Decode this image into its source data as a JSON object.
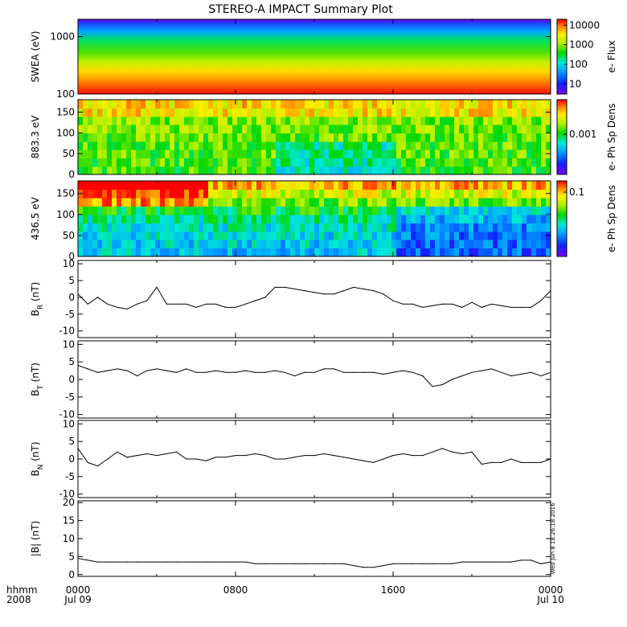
{
  "chart_data": {
    "title": "STEREO-A IMPACT Summary Plot",
    "type": "multi-panel",
    "x_axis": {
      "ticks": [
        "0000",
        "0800",
        "1600",
        "0000"
      ],
      "dates": [
        "Jul 09",
        "",
        "",
        "Jul 10"
      ],
      "row_labels": [
        "hhmm",
        "2008"
      ],
      "range_hours": [
        0,
        24
      ]
    },
    "timestamp": "Wed Jun  8 18:26:18 2016",
    "panels": [
      {
        "id": "swea",
        "type": "heatmap",
        "ylabel": "SWEA (eV)",
        "yscale": "log",
        "ylim": [
          100,
          2000
        ],
        "yticks": [
          {
            "v": 1000,
            "t": "1000"
          },
          {
            "v": 100,
            "t": "100"
          }
        ],
        "colorbar_label": "e- Flux",
        "colorbar_scale": "log",
        "colorbar_range": [
          3,
          20000
        ],
        "colorbar_ticks": [
          {
            "v": 10000,
            "t": "10000"
          },
          {
            "v": 1000,
            "t": "1000"
          },
          {
            "v": 100,
            "t": "100"
          },
          {
            "v": 10,
            "t": "10"
          }
        ]
      },
      {
        "id": "pad883",
        "type": "heatmap",
        "ylabel": "883.3 eV",
        "ylim": [
          0,
          180
        ],
        "yticks": [
          {
            "v": 0,
            "t": "0"
          },
          {
            "v": 50,
            "t": "50"
          },
          {
            "v": 100,
            "t": "100"
          },
          {
            "v": 150,
            "t": "150"
          }
        ],
        "colorbar_label": "e- Ph Sp Dens",
        "colorbar_scale": "log",
        "colorbar_range": [
          0.0002,
          0.004
        ],
        "colorbar_ticks": [
          {
            "v": 0.001,
            "t": "0.001"
          }
        ]
      },
      {
        "id": "pad436",
        "type": "heatmap",
        "ylabel": "436.5 eV",
        "ylim": [
          0,
          180
        ],
        "yticks": [
          {
            "v": 0,
            "t": "0"
          },
          {
            "v": 50,
            "t": "50"
          },
          {
            "v": 100,
            "t": "100"
          },
          {
            "v": 150,
            "t": "150"
          }
        ],
        "colorbar_label": "e- Ph Sp Dens",
        "colorbar_scale": "log",
        "colorbar_range": [
          0.01,
          0.15
        ],
        "colorbar_ticks": [
          {
            "v": 0.1,
            "t": "0.1"
          }
        ]
      },
      {
        "id": "br",
        "type": "line",
        "ylabel": "B",
        "ylabel_sub": "R",
        "yunit": " (nT)",
        "ylim": [
          -12,
          11
        ],
        "yticks": [
          {
            "v": 10,
            "t": "10"
          },
          {
            "v": 5,
            "t": "5"
          },
          {
            "v": 0,
            "t": "0"
          },
          {
            "v": -5,
            "t": "-5"
          },
          {
            "v": -10,
            "t": "-10"
          }
        ],
        "x": [
          0,
          0.5,
          1,
          1.5,
          2,
          2.5,
          3,
          3.5,
          4,
          4.5,
          5,
          5.5,
          6,
          6.5,
          7,
          7.5,
          8,
          8.5,
          9,
          9.5,
          10,
          10.5,
          11,
          11.5,
          12,
          12.5,
          13,
          13.5,
          14,
          14.5,
          15,
          15.5,
          16,
          16.5,
          17,
          17.5,
          18,
          18.5,
          19,
          19.5,
          20,
          20.5,
          21,
          21.5,
          22,
          22.5,
          23,
          23.5,
          24
        ],
        "y": [
          1,
          -2,
          0,
          -2,
          -3,
          -3.5,
          -2,
          -1,
          3,
          -2,
          -2,
          -2,
          -3,
          -2,
          -2,
          -3,
          -3,
          -2,
          -1,
          0,
          3,
          3,
          2.5,
          2,
          1.5,
          1,
          1,
          2,
          3,
          2.5,
          2,
          1,
          -1,
          -2,
          -2,
          -3,
          -2.5,
          -2,
          -2,
          -3,
          -1.5,
          -3,
          -2,
          -2.5,
          -3,
          -3,
          -3,
          -1,
          2
        ]
      },
      {
        "id": "bt",
        "type": "line",
        "ylabel": "B",
        "ylabel_sub": "T",
        "yunit": " (nT)",
        "ylim": [
          -11,
          11
        ],
        "yticks": [
          {
            "v": 10,
            "t": "10"
          },
          {
            "v": 5,
            "t": "5"
          },
          {
            "v": 0,
            "t": "0"
          },
          {
            "v": -5,
            "t": "-5"
          },
          {
            "v": -10,
            "t": "-10"
          }
        ],
        "x": [
          0,
          0.5,
          1,
          1.5,
          2,
          2.5,
          3,
          3.5,
          4,
          4.5,
          5,
          5.5,
          6,
          6.5,
          7,
          7.5,
          8,
          8.5,
          9,
          9.5,
          10,
          10.5,
          11,
          11.5,
          12,
          12.5,
          13,
          13.5,
          14,
          14.5,
          15,
          15.5,
          16,
          16.5,
          17,
          17.5,
          18,
          18.5,
          19,
          19.5,
          20,
          20.5,
          21,
          21.5,
          22,
          22.5,
          23,
          23.5,
          24
        ],
        "y": [
          4,
          3,
          2,
          2.5,
          3,
          2.5,
          1,
          2.5,
          3,
          2.5,
          2,
          3,
          2,
          2,
          2.5,
          2,
          2,
          2.5,
          2,
          2,
          2.5,
          2,
          1,
          2,
          2,
          3,
          3,
          2,
          2,
          2,
          2,
          1.5,
          2,
          2.5,
          2,
          1,
          -2,
          -1.5,
          0,
          1,
          2,
          2.5,
          3,
          2,
          1,
          1.5,
          2,
          1,
          2
        ]
      },
      {
        "id": "bn",
        "type": "line",
        "ylabel": "B",
        "ylabel_sub": "N",
        "yunit": " (nT)",
        "ylim": [
          -11,
          11
        ],
        "yticks": [
          {
            "v": 10,
            "t": "10"
          },
          {
            "v": 5,
            "t": "5"
          },
          {
            "v": 0,
            "t": "0"
          },
          {
            "v": -5,
            "t": "-5"
          },
          {
            "v": -10,
            "t": "-10"
          }
        ],
        "x": [
          0,
          0.5,
          1,
          1.5,
          2,
          2.5,
          3,
          3.5,
          4,
          4.5,
          5,
          5.5,
          6,
          6.5,
          7,
          7.5,
          8,
          8.5,
          9,
          9.5,
          10,
          10.5,
          11,
          11.5,
          12,
          12.5,
          13,
          13.5,
          14,
          14.5,
          15,
          15.5,
          16,
          16.5,
          17,
          17.5,
          18,
          18.5,
          19,
          19.5,
          20,
          20.5,
          21,
          21.5,
          22,
          22.5,
          23,
          23.5,
          24
        ],
        "y": [
          3,
          -1,
          -2,
          0,
          2,
          0.5,
          1,
          1.5,
          1,
          1.5,
          2,
          0,
          0,
          -0.5,
          0.5,
          0.5,
          1,
          1,
          1.5,
          1,
          0,
          0,
          0.5,
          1,
          1,
          1.5,
          1,
          0.5,
          0,
          -0.5,
          -1,
          0,
          1,
          1.5,
          1,
          1,
          2,
          3,
          2,
          1.5,
          2,
          -1.5,
          -1,
          -1,
          0,
          -1,
          -1,
          -1,
          0
        ]
      },
      {
        "id": "bmag",
        "type": "line",
        "ylabel": "|B|",
        "yunit": " (nT)",
        "ylim": [
          -0.5,
          20.5
        ],
        "yticks": [
          {
            "v": 20,
            "t": "20"
          },
          {
            "v": 15,
            "t": "15"
          },
          {
            "v": 10,
            "t": "10"
          },
          {
            "v": 5,
            "t": "5"
          },
          {
            "v": 0,
            "t": "0"
          }
        ],
        "x": [
          0,
          0.5,
          1,
          1.5,
          2,
          2.5,
          3,
          3.5,
          4,
          4.5,
          5,
          5.5,
          6,
          6.5,
          7,
          7.5,
          8,
          8.5,
          9,
          9.5,
          10,
          10.5,
          11,
          11.5,
          12,
          12.5,
          13,
          13.5,
          14,
          14.5,
          15,
          15.5,
          16,
          16.5,
          17,
          17.5,
          18,
          18.5,
          19,
          19.5,
          20,
          20.5,
          21,
          21.5,
          22,
          22.5,
          23,
          23.5,
          24
        ],
        "y": [
          4.5,
          4,
          3.5,
          3.5,
          3.5,
          3.5,
          3.5,
          3.5,
          3.5,
          3.5,
          3.5,
          3.5,
          3.5,
          3.5,
          3.5,
          3.5,
          3.5,
          3.5,
          3,
          3,
          3,
          3,
          3,
          3,
          3,
          3,
          3,
          3,
          2.5,
          2,
          2,
          2.5,
          3,
          3,
          3,
          3,
          3,
          3,
          3,
          3.5,
          3.5,
          3.5,
          3.5,
          3.5,
          3.5,
          4,
          4,
          3,
          3.5
        ]
      }
    ]
  }
}
